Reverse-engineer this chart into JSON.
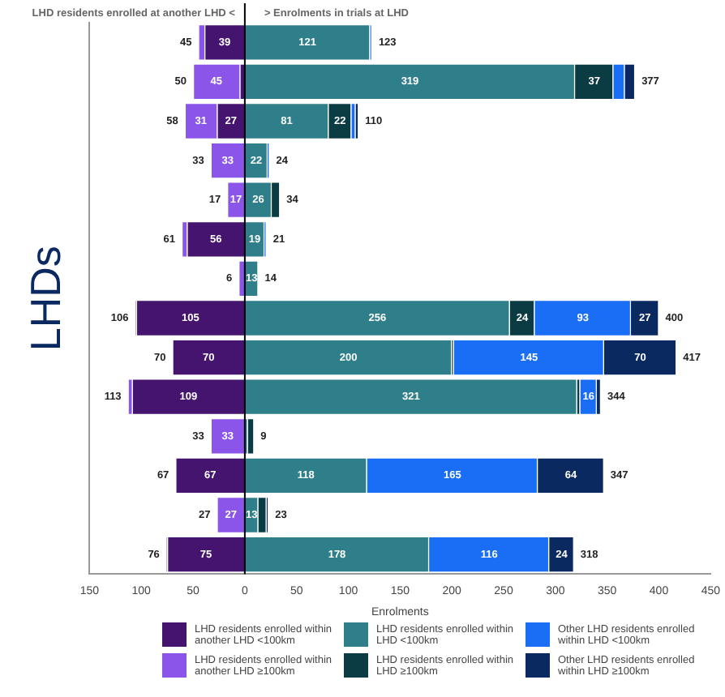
{
  "chart_data": {
    "type": "bar",
    "orientation": "horizontal",
    "xlabel": "Enrolments",
    "ylabel": "LHDs",
    "annotations": [
      "LHD residents enrolled at another LHD <",
      "> Enrolments in trials at LHD"
    ],
    "categories": [
      null,
      null,
      null,
      null,
      null,
      null,
      null,
      null,
      null,
      null,
      null,
      null,
      null,
      null
    ],
    "series": [
      {
        "name": "LHD residents enrolled within another LHD <100km",
        "color": "#44146e",
        "values": [
          39,
          5,
          27,
          null,
          null,
          56,
          null,
          105,
          70,
          109,
          null,
          67,
          null,
          75
        ],
        "base": [
          -39,
          -5,
          -27,
          null,
          null,
          -56,
          null,
          -105,
          -70,
          -109,
          null,
          -67,
          null,
          -75
        ],
        "value_labels": [
          "39",
          null,
          "27",
          null,
          null,
          "56",
          null,
          "105",
          "70",
          "109",
          null,
          "67",
          null,
          "75"
        ]
      },
      {
        "name": "LHD residents enrolled within another LHD ≥100km",
        "color": "#8a55e8",
        "values": [
          6,
          45,
          31,
          33,
          17,
          5,
          6,
          1,
          null,
          4,
          33,
          null,
          27,
          1
        ],
        "base": [
          -45,
          -50,
          -58,
          -33,
          -17,
          -61,
          -6,
          -106,
          null,
          -113,
          -33,
          null,
          -27,
          -76
        ],
        "value_labels": [
          null,
          "45",
          "31",
          "33",
          "17",
          null,
          null,
          null,
          null,
          null,
          "33",
          null,
          "27",
          null
        ]
      },
      {
        "name": "LHD residents enrolled within LHD <100km",
        "color": "#2e7f8a",
        "values": [
          121,
          319,
          81,
          22,
          26,
          19,
          13,
          256,
          200,
          321,
          3,
          118,
          13,
          178
        ],
        "base": [
          0,
          0,
          0,
          0,
          0,
          0,
          0,
          0,
          0,
          0,
          0,
          0,
          0,
          0
        ],
        "value_labels": [
          "121",
          "319",
          "81",
          "22",
          "26",
          "19",
          "13",
          "256",
          "200",
          "321",
          null,
          "118",
          "13",
          "178"
        ]
      },
      {
        "name": "LHD residents enrolled within LHD ≥100km",
        "color": "#0b3c44",
        "values": [
          null,
          37,
          22,
          null,
          8,
          null,
          null,
          24,
          2,
          3,
          6,
          null,
          8,
          null
        ],
        "base": [
          null,
          319,
          81,
          null,
          26,
          null,
          null,
          256,
          200,
          321,
          3,
          null,
          13,
          null
        ],
        "value_labels": [
          null,
          "37",
          "22",
          null,
          null,
          null,
          null,
          "24",
          null,
          null,
          null,
          null,
          null,
          null
        ]
      },
      {
        "name": "Other LHD residents enrolled within LHD <100km",
        "color": "#1a6ef5",
        "values": [
          2,
          11,
          4,
          2,
          null,
          2,
          null,
          93,
          145,
          16,
          null,
          165,
          null,
          116
        ],
        "base": [
          121,
          356,
          103,
          22,
          null,
          19,
          null,
          280,
          202,
          324,
          null,
          118,
          null,
          178
        ],
        "value_labels": [
          null,
          null,
          null,
          null,
          null,
          null,
          null,
          "93",
          "145",
          "16",
          null,
          "165",
          null,
          "116"
        ]
      },
      {
        "name": "Other LHD residents enrolled within LHD ≥100km",
        "color": "#0a2960",
        "values": [
          null,
          10,
          3,
          null,
          null,
          null,
          null,
          27,
          70,
          4,
          null,
          64,
          2,
          24
        ],
        "base": [
          null,
          367,
          107,
          null,
          null,
          null,
          null,
          373,
          347,
          340,
          null,
          283,
          21,
          294
        ],
        "value_labels": [
          null,
          null,
          null,
          null,
          null,
          null,
          null,
          "27",
          "70",
          null,
          null,
          "64",
          null,
          "24"
        ]
      }
    ],
    "totals": [
      [
        "45",
        "123"
      ],
      [
        "50",
        "377"
      ],
      [
        "58",
        "110"
      ],
      [
        "33",
        "24"
      ],
      [
        "17",
        "34"
      ],
      [
        "61",
        "21"
      ],
      [
        "6",
        "14"
      ],
      [
        "106",
        "400"
      ],
      [
        "70",
        "417"
      ],
      [
        "113",
        "344"
      ],
      [
        "33",
        "9"
      ],
      [
        "67",
        "347"
      ],
      [
        "27",
        "23"
      ],
      [
        "76",
        "318"
      ]
    ],
    "xlim": [
      -150,
      450
    ],
    "xticks": [
      {
        "value": -150,
        "label": "150"
      },
      {
        "value": -100,
        "label": "100"
      },
      {
        "value": -50,
        "label": "50"
      },
      0,
      50,
      100,
      150,
      200,
      250,
      300,
      350,
      400,
      450
    ],
    "ref_lines": [
      {
        "axis": "x",
        "value": 0,
        "color": "#000000"
      }
    ],
    "grid": false,
    "legend": "bottom"
  }
}
